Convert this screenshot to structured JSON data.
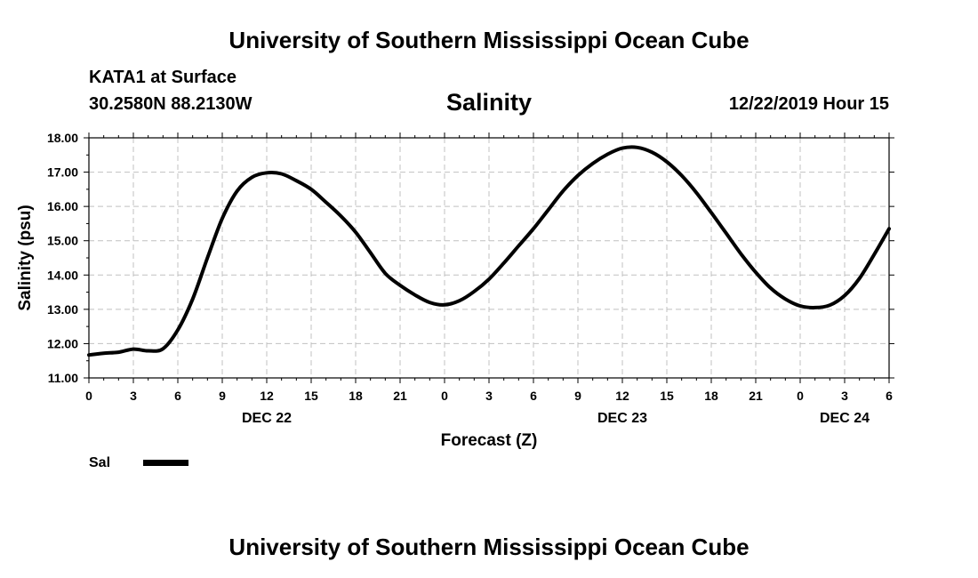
{
  "header": {
    "title": "University of Southern Mississippi Ocean Cube",
    "station": "KATA1 at Surface",
    "coords": "30.2580N 88.2130W",
    "variable": "Salinity",
    "datetime": "12/22/2019 Hour 15"
  },
  "footer": {
    "title": "University of Southern Mississippi Ocean Cube"
  },
  "chart_data": {
    "type": "line",
    "xlabel": "Forecast (Z)",
    "ylabel": "Salinity (psu)",
    "ylim": [
      11.0,
      18.0
    ],
    "yticks": [
      "11.00",
      "12.00",
      "13.00",
      "14.00",
      "15.00",
      "16.00",
      "17.00",
      "18.00"
    ],
    "xlim": [
      0,
      54
    ],
    "xtick_labels": [
      "0",
      "3",
      "6",
      "9",
      "12",
      "15",
      "18",
      "21",
      "0",
      "3",
      "6",
      "9",
      "12",
      "15",
      "18",
      "21",
      "0",
      "3",
      "6"
    ],
    "date_labels": [
      {
        "label": "DEC 22",
        "at_hour": 12
      },
      {
        "label": "DEC 23",
        "at_hour": 36
      },
      {
        "label": "DEC 24",
        "at_hour": 51
      }
    ],
    "grid": true,
    "legend": {
      "placement": "bottom-left",
      "label": "Sal",
      "color": "#000000"
    },
    "series": [
      {
        "name": "Sal",
        "color": "#000000",
        "x": [
          0,
          1,
          2,
          3,
          4,
          5,
          6,
          7,
          8,
          9,
          10,
          11,
          12,
          13,
          14,
          15,
          16,
          17,
          18,
          19,
          20,
          21,
          22,
          23,
          24,
          25,
          26,
          27,
          28,
          29,
          30,
          31,
          32,
          33,
          34,
          35,
          36,
          37,
          38,
          39,
          40,
          41,
          42,
          43,
          44,
          45,
          46,
          47,
          48,
          49,
          50,
          51,
          52,
          53,
          54
        ],
        "values": [
          11.67,
          11.72,
          11.75,
          11.84,
          11.79,
          11.85,
          12.4,
          13.3,
          14.5,
          15.65,
          16.45,
          16.85,
          16.98,
          16.95,
          16.75,
          16.5,
          16.12,
          15.72,
          15.25,
          14.65,
          14.05,
          13.7,
          13.42,
          13.2,
          13.13,
          13.25,
          13.52,
          13.88,
          14.35,
          14.85,
          15.35,
          15.9,
          16.45,
          16.9,
          17.25,
          17.52,
          17.7,
          17.72,
          17.58,
          17.3,
          16.9,
          16.4,
          15.82,
          15.22,
          14.62,
          14.08,
          13.62,
          13.3,
          13.1,
          13.05,
          13.12,
          13.4,
          13.9,
          14.6,
          15.35
        ]
      }
    ]
  }
}
